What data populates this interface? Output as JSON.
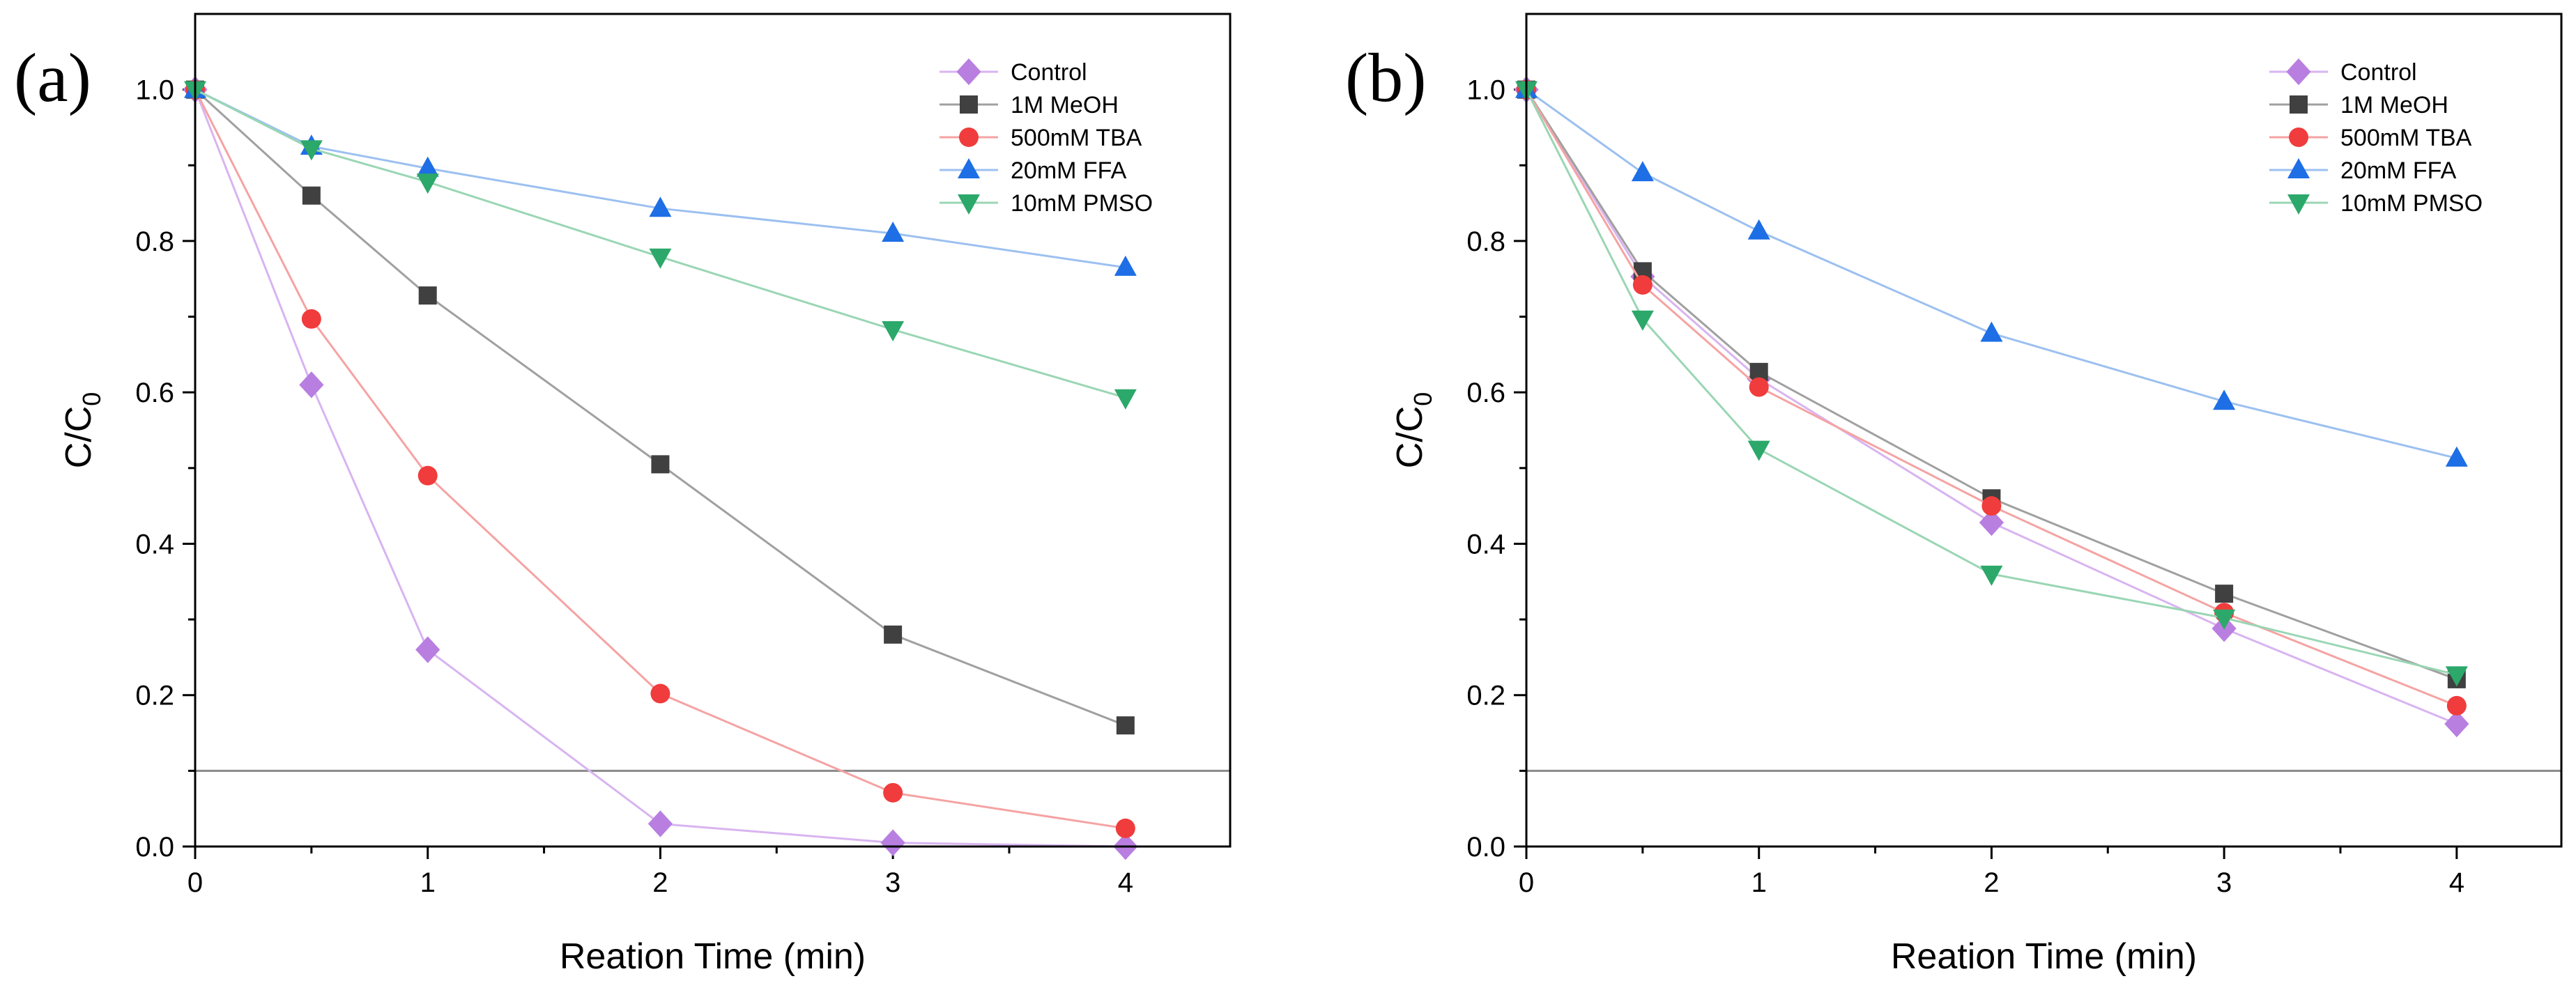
{
  "chart_data": [
    {
      "panel": "(a)",
      "type": "line",
      "xlabel": "Reation Time (min)",
      "ylabel": "C/C",
      "ylabel_sub": "0",
      "xlim": [
        0,
        4.45
      ],
      "ylim": [
        0,
        1.1
      ],
      "xticks": [
        "0",
        "1",
        "2",
        "3",
        "4"
      ],
      "yticks": [
        "0.0",
        "0.2",
        "0.4",
        "0.6",
        "0.8",
        "1.0"
      ],
      "reference_line": 0.1,
      "legend_position": "top-right",
      "x": [
        0,
        0.5,
        1,
        2,
        3,
        4
      ],
      "series": [
        {
          "name": "Control",
          "marker": "diamond",
          "color": "#b87fe0",
          "line": "#d8b4f0",
          "values": [
            1.0,
            0.61,
            0.26,
            0.03,
            0.005,
            0.0
          ]
        },
        {
          "name": "1M MeOH",
          "marker": "square",
          "color": "#404040",
          "line": "#a0a0a0",
          "values": [
            1.0,
            0.86,
            0.728,
            0.505,
            0.28,
            0.16
          ]
        },
        {
          "name": "500mM TBA",
          "marker": "circle",
          "color": "#f03c3c",
          "line": "#f5a3a3",
          "values": [
            1.0,
            0.697,
            0.49,
            0.202,
            0.071,
            0.024
          ]
        },
        {
          "name": "20mM FFA",
          "marker": "triangle-up",
          "color": "#1e6ee6",
          "line": "#9cc0f0",
          "values": [
            1.0,
            0.925,
            0.896,
            0.843,
            0.81,
            0.765
          ]
        },
        {
          "name": "10mM PMSO",
          "marker": "triangle-down",
          "color": "#2ca86a",
          "line": "#9ad6b4",
          "values": [
            1.0,
            0.922,
            0.878,
            0.779,
            0.683,
            0.593
          ]
        }
      ]
    },
    {
      "panel": "(b)",
      "type": "line",
      "xlabel": "Reation Time (min)",
      "ylabel": "C/C",
      "ylabel_sub": "0",
      "xlim": [
        0,
        4.45
      ],
      "ylim": [
        0,
        1.1
      ],
      "xticks": [
        "0",
        "1",
        "2",
        "3",
        "4"
      ],
      "yticks": [
        "0.0",
        "0.2",
        "0.4",
        "0.6",
        "0.8",
        "1.0"
      ],
      "reference_line": 0.1,
      "legend_position": "top-right",
      "x": [
        0,
        0.5,
        1,
        2,
        3,
        4
      ],
      "series": [
        {
          "name": "Control",
          "marker": "diamond",
          "color": "#b87fe0",
          "line": "#d8b4f0",
          "values": [
            1.0,
            0.753,
            0.618,
            0.428,
            0.288,
            0.162
          ]
        },
        {
          "name": "1M MeOH",
          "marker": "square",
          "color": "#404040",
          "line": "#a0a0a0",
          "values": [
            1.0,
            0.76,
            0.627,
            0.46,
            0.334,
            0.221
          ]
        },
        {
          "name": "500mM TBA",
          "marker": "circle",
          "color": "#f03c3c",
          "line": "#f5a3a3",
          "values": [
            1.0,
            0.742,
            0.607,
            0.45,
            0.309,
            0.186
          ]
        },
        {
          "name": "20mM FFA",
          "marker": "triangle-up",
          "color": "#1e6ee6",
          "line": "#9cc0f0",
          "values": [
            1.0,
            0.89,
            0.813,
            0.678,
            0.588,
            0.513
          ]
        },
        {
          "name": "10mM PMSO",
          "marker": "triangle-down",
          "color": "#2ca86a",
          "line": "#9ad6b4",
          "values": [
            1.0,
            0.697,
            0.525,
            0.36,
            0.302,
            0.227
          ]
        }
      ]
    }
  ]
}
